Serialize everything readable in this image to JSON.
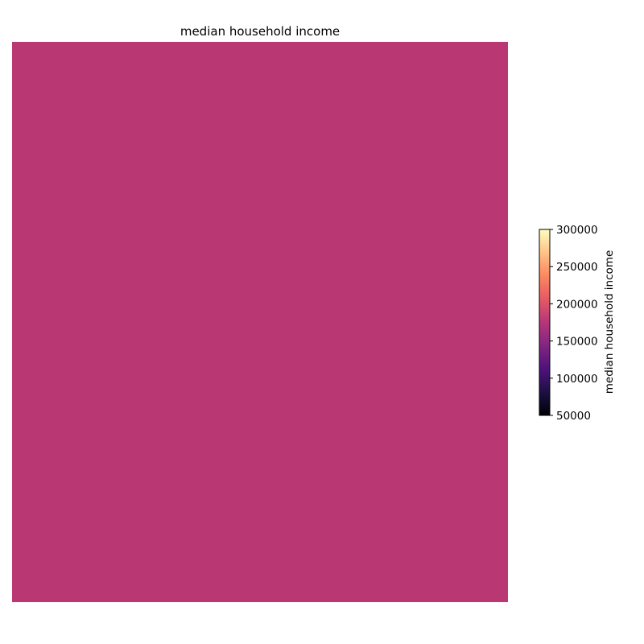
{
  "chart_data": {
    "type": "heatmap",
    "title": "median household income",
    "values": [
      [
        180000
      ]
    ],
    "cell_color": "#b93873",
    "colorbar": {
      "label": "median household income",
      "min": 50000,
      "max": 300000,
      "ticks": [
        "50000",
        "100000",
        "150000",
        "200000",
        "250000",
        "300000"
      ],
      "tick_values": [
        50000,
        100000,
        150000,
        200000,
        250000,
        300000
      ],
      "colormap": "magma",
      "stops": [
        "#000004",
        "#1c1044",
        "#4f127b",
        "#812581",
        "#b5367a",
        "#e55964",
        "#fb8761",
        "#fec287",
        "#fcfdbf"
      ],
      "placement": "right"
    },
    "axes_visible": false,
    "grid": false
  }
}
